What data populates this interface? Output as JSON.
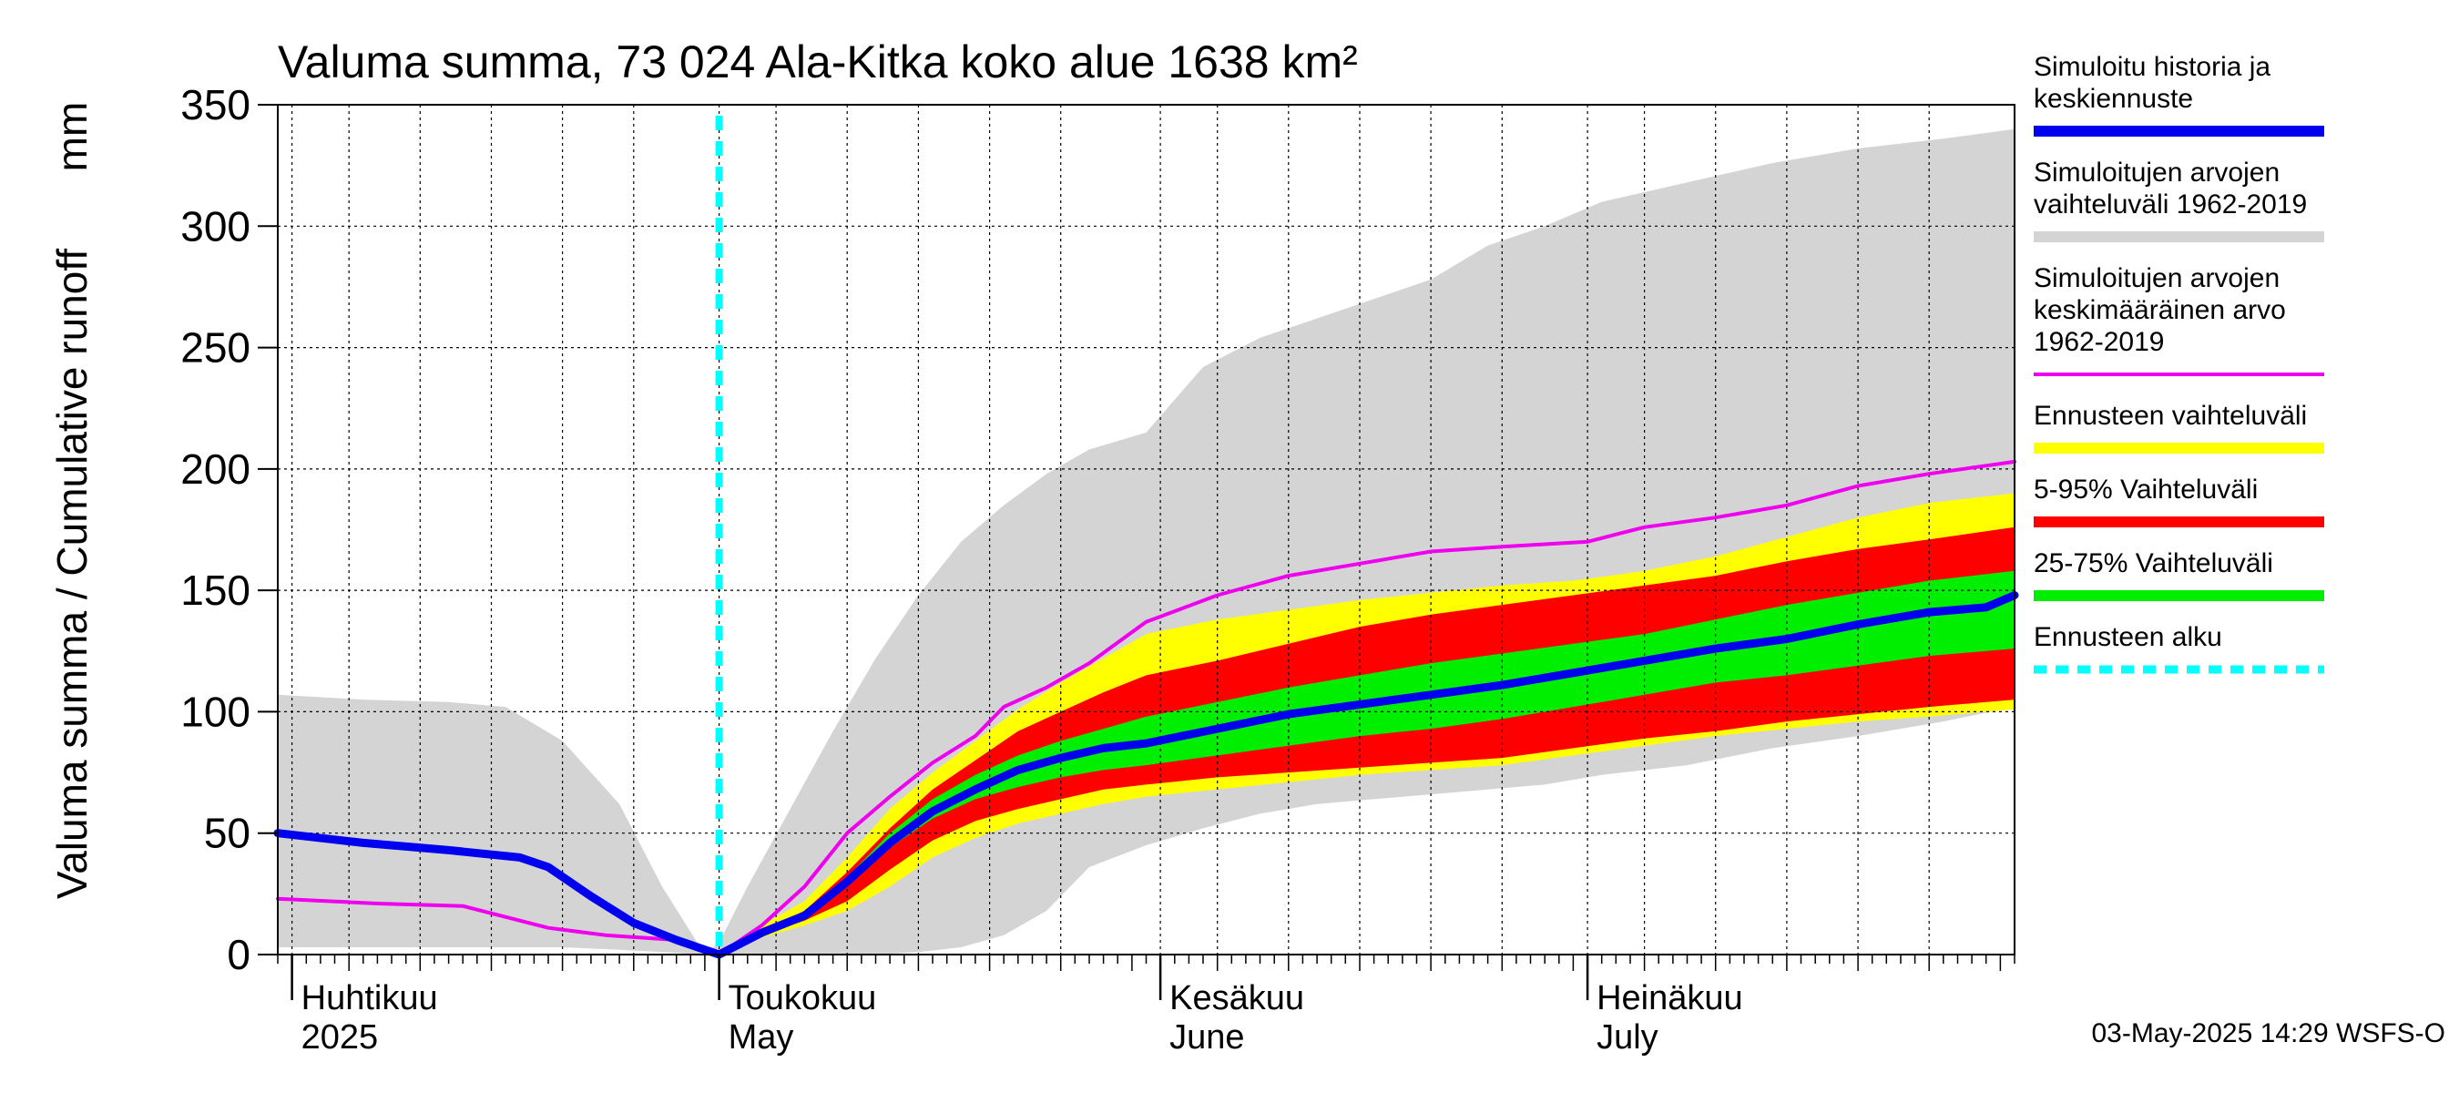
{
  "chart_data": {
    "type": "area",
    "title": "Valuma summa, 73 024 Ala-Kitka koko alue 1638 km²",
    "ylabel": "Valuma summa / Cumulative runoff",
    "yunit": "mm",
    "ylim": [
      0,
      350
    ],
    "yticks": [
      0,
      50,
      100,
      150,
      200,
      250,
      300,
      350
    ],
    "xlim": [
      "2025-03-31",
      "2025-07-31"
    ],
    "grid": true,
    "legend_position": "right",
    "forecast_start": "2025-05-01",
    "months": [
      {
        "fi": "Huhtikuu",
        "en": "2025",
        "start": "2025-04-01"
      },
      {
        "fi": "Toukokuu",
        "en": "May",
        "start": "2025-05-01"
      },
      {
        "fi": "Kesäkuu",
        "en": "June",
        "start": "2025-06-01"
      },
      {
        "fi": "Heinäkuu",
        "en": "July",
        "start": "2025-07-01"
      }
    ],
    "colors": {
      "history_range": "#d4d4d4",
      "forecast_range": "#ffff00",
      "p5_95": "#ff0000",
      "p25_75": "#00ee00",
      "median": "#0000ee",
      "mean": "#ee00ee",
      "forecast_start": "#00ffff"
    },
    "legend": [
      {
        "label_lines": [
          "Simuloitu historia ja",
          "keskiennuste"
        ],
        "color": "#0000ee",
        "style": "thick"
      },
      {
        "label_lines": [
          "Simuloitujen arvojen",
          "vaihteluväli 1962-2019"
        ],
        "color": "#d4d4d4",
        "style": "thick"
      },
      {
        "label_lines": [
          "Simuloitujen arvojen",
          "keskimääräinen arvo",
          "   1962-2019"
        ],
        "color": "#ee00ee",
        "style": "thin"
      },
      {
        "label_lines": [
          "Ennusteen vaihteluväli"
        ],
        "color": "#ffff00",
        "style": "thick"
      },
      {
        "label_lines": [
          "5-95% Vaihteluväli"
        ],
        "color": "#ff0000",
        "style": "thick"
      },
      {
        "label_lines": [
          "25-75% Vaihteluväli"
        ],
        "color": "#00ee00",
        "style": "thick"
      },
      {
        "label_lines": [
          "Ennusteen alku"
        ],
        "color": "#00ffff",
        "style": "dashed"
      }
    ],
    "history_range": {
      "x": [
        "2025-03-31",
        "2025-04-06",
        "2025-04-12",
        "2025-04-16",
        "2025-04-20",
        "2025-04-24",
        "2025-04-27",
        "2025-04-30",
        "2025-05-01",
        "2025-05-03",
        "2025-05-06",
        "2025-05-09",
        "2025-05-12",
        "2025-05-15",
        "2025-05-18",
        "2025-05-21",
        "2025-05-24",
        "2025-05-27",
        "2025-05-31",
        "2025-06-04",
        "2025-06-08",
        "2025-06-12",
        "2025-06-16",
        "2025-06-20",
        "2025-06-24",
        "2025-06-28",
        "2025-07-02",
        "2025-07-08",
        "2025-07-14",
        "2025-07-20",
        "2025-07-26",
        "2025-07-31"
      ],
      "low": [
        3,
        3,
        3,
        3,
        3,
        2,
        1,
        0,
        0,
        0,
        0,
        0,
        0,
        1,
        3,
        8,
        18,
        36,
        45,
        52,
        58,
        62,
        64,
        66,
        68,
        70,
        74,
        78,
        85,
        90,
        96,
        102
      ],
      "high": [
        107,
        105,
        104,
        102,
        88,
        62,
        28,
        0,
        5,
        28,
        60,
        92,
        122,
        148,
        170,
        185,
        198,
        208,
        215,
        242,
        254,
        262,
        270,
        278,
        292,
        300,
        310,
        318,
        326,
        332,
        336,
        340
      ]
    },
    "forecast_range": {
      "x": [
        "2025-05-01",
        "2025-05-04",
        "2025-05-07",
        "2025-05-10",
        "2025-05-13",
        "2025-05-16",
        "2025-05-19",
        "2025-05-22",
        "2025-05-25",
        "2025-05-28",
        "2025-05-31",
        "2025-06-05",
        "2025-06-10",
        "2025-06-15",
        "2025-06-20",
        "2025-06-25",
        "2025-06-30",
        "2025-07-05",
        "2025-07-10",
        "2025-07-15",
        "2025-07-20",
        "2025-07-25",
        "2025-07-31"
      ],
      "low": [
        0,
        7,
        12,
        18,
        28,
        40,
        48,
        54,
        58,
        62,
        65,
        68,
        71,
        74,
        76,
        78,
        82,
        86,
        90,
        93,
        96,
        98,
        101
      ],
      "high": [
        0,
        12,
        22,
        40,
        60,
        75,
        88,
        101,
        112,
        122,
        132,
        138,
        142,
        146,
        149,
        152,
        154,
        158,
        164,
        172,
        180,
        186,
        190
      ]
    },
    "p5_95": {
      "x": [
        "2025-05-01",
        "2025-05-04",
        "2025-05-07",
        "2025-05-10",
        "2025-05-13",
        "2025-05-16",
        "2025-05-19",
        "2025-05-22",
        "2025-05-25",
        "2025-05-28",
        "2025-05-31",
        "2025-06-05",
        "2025-06-10",
        "2025-06-15",
        "2025-06-20",
        "2025-06-25",
        "2025-06-30",
        "2025-07-05",
        "2025-07-10",
        "2025-07-15",
        "2025-07-20",
        "2025-07-25",
        "2025-07-31"
      ],
      "low": [
        0,
        8,
        14,
        22,
        35,
        47,
        55,
        60,
        64,
        68,
        70,
        73,
        75,
        77,
        79,
        81,
        85,
        89,
        92,
        96,
        99,
        102,
        105
      ],
      "high": [
        0,
        10,
        18,
        34,
        52,
        68,
        80,
        92,
        100,
        108,
        115,
        121,
        128,
        135,
        140,
        144,
        148,
        152,
        156,
        162,
        167,
        171,
        176
      ]
    },
    "p25_75": {
      "x": [
        "2025-05-01",
        "2025-05-04",
        "2025-05-07",
        "2025-05-10",
        "2025-05-13",
        "2025-05-16",
        "2025-05-19",
        "2025-05-22",
        "2025-05-25",
        "2025-05-28",
        "2025-05-31",
        "2025-06-05",
        "2025-06-10",
        "2025-06-15",
        "2025-06-20",
        "2025-06-25",
        "2025-06-30",
        "2025-07-05",
        "2025-07-10",
        "2025-07-15",
        "2025-07-20",
        "2025-07-25",
        "2025-07-31"
      ],
      "low": [
        0,
        9,
        16,
        28,
        44,
        56,
        64,
        69,
        73,
        76,
        78,
        82,
        86,
        90,
        93,
        97,
        102,
        107,
        112,
        115,
        119,
        123,
        126
      ],
      "high": [
        0,
        10,
        17,
        32,
        50,
        64,
        74,
        82,
        88,
        93,
        98,
        104,
        110,
        115,
        120,
        124,
        128,
        132,
        138,
        144,
        149,
        154,
        158
      ]
    },
    "median": {
      "x": [
        "2025-03-31",
        "2025-04-06",
        "2025-04-12",
        "2025-04-17",
        "2025-04-19",
        "2025-04-22",
        "2025-04-25",
        "2025-04-28",
        "2025-05-01",
        "2025-05-04",
        "2025-05-07",
        "2025-05-10",
        "2025-05-13",
        "2025-05-16",
        "2025-05-19",
        "2025-05-22",
        "2025-05-25",
        "2025-05-28",
        "2025-05-31",
        "2025-06-05",
        "2025-06-10",
        "2025-06-15",
        "2025-06-20",
        "2025-06-25",
        "2025-06-30",
        "2025-07-05",
        "2025-07-10",
        "2025-07-15",
        "2025-07-20",
        "2025-07-25",
        "2025-07-29",
        "2025-07-31"
      ],
      "y": [
        50,
        46,
        43,
        40,
        36,
        24,
        13,
        6,
        0,
        9,
        16,
        30,
        46,
        59,
        68,
        76,
        81,
        85,
        87,
        93,
        99,
        103,
        107,
        111,
        116,
        121,
        126,
        130,
        136,
        141,
        143,
        148
      ]
    },
    "mean": {
      "x": [
        "2025-03-31",
        "2025-04-07",
        "2025-04-13",
        "2025-04-19",
        "2025-04-23",
        "2025-04-28",
        "2025-05-01",
        "2025-05-04",
        "2025-05-07",
        "2025-05-10",
        "2025-05-13",
        "2025-05-16",
        "2025-05-19",
        "2025-05-21",
        "2025-05-24",
        "2025-05-27",
        "2025-05-31",
        "2025-06-05",
        "2025-06-10",
        "2025-06-15",
        "2025-06-20",
        "2025-06-25",
        "2025-07-01",
        "2025-07-05",
        "2025-07-10",
        "2025-07-15",
        "2025-07-20",
        "2025-07-25",
        "2025-07-31"
      ],
      "y": [
        23,
        21,
        20,
        11,
        8,
        6,
        0,
        12,
        28,
        50,
        65,
        79,
        90,
        102,
        110,
        120,
        137,
        148,
        156,
        161,
        166,
        168,
        170,
        176,
        180,
        185,
        193,
        198,
        203
      ]
    }
  },
  "footer": {
    "timestamp": "03-May-2025 14:29 WSFS-O"
  }
}
